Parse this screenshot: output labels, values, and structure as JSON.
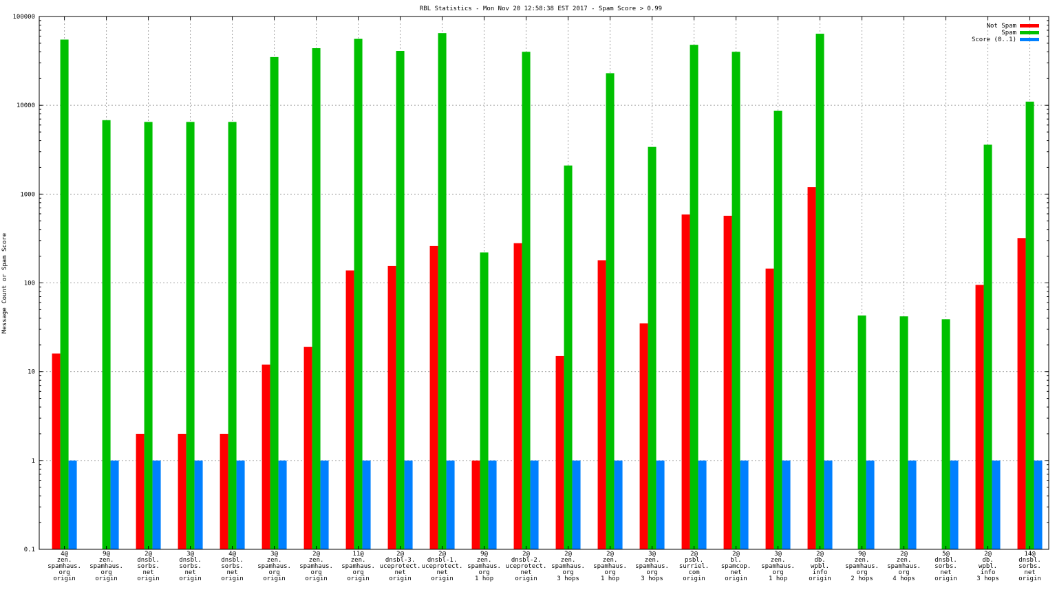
{
  "chart_data": {
    "type": "bar",
    "title": "RBL Statistics - Mon Nov 20 12:58:38 EST 2017 - Spam Score > 0.99",
    "xlabel": "",
    "ylabel": "Message Count or Spam Score",
    "yscale": "log",
    "ylim": [
      0.1,
      100000
    ],
    "yticks": [
      0.1,
      1,
      10,
      100,
      1000,
      10000,
      100000
    ],
    "ytick_labels": [
      "0.1",
      "1",
      "10",
      "100",
      "1000",
      "10000",
      "100000"
    ],
    "grid": true,
    "legend_position": "top-right",
    "categories": [
      [
        "4@",
        "zen.",
        "spamhaus.",
        "org",
        "origin"
      ],
      [
        "9@",
        "zen.",
        "spamhaus.",
        "org",
        "origin"
      ],
      [
        "2@",
        "dnsbl.",
        "sorbs.",
        "net",
        "origin"
      ],
      [
        "3@",
        "dnsbl.",
        "sorbs.",
        "net",
        "origin"
      ],
      [
        "4@",
        "dnsbl.",
        "sorbs.",
        "net",
        "origin"
      ],
      [
        "3@",
        "zen.",
        "spamhaus.",
        "org",
        "origin"
      ],
      [
        "2@",
        "zen.",
        "spamhaus.",
        "org",
        "origin"
      ],
      [
        "11@",
        "zen.",
        "spamhaus.",
        "org",
        "origin"
      ],
      [
        "2@",
        "dnsbl-3.",
        "uceprotect.",
        "net",
        "origin"
      ],
      [
        "2@",
        "dnsbl-1.",
        "uceprotect.",
        "net",
        "origin"
      ],
      [
        "9@",
        "zen.",
        "spamhaus.",
        "org",
        "1 hop"
      ],
      [
        "2@",
        "dnsbl-2.",
        "uceprotect.",
        "net",
        "origin"
      ],
      [
        "2@",
        "zen.",
        "spamhaus.",
        "org",
        "3 hops"
      ],
      [
        "2@",
        "zen.",
        "spamhaus.",
        "org",
        "1 hop"
      ],
      [
        "3@",
        "zen.",
        "spamhaus.",
        "org",
        "3 hops"
      ],
      [
        "2@",
        "psbl.",
        "surriel.",
        "com",
        "origin"
      ],
      [
        "2@",
        "bl.",
        "spamcop.",
        "net",
        "origin"
      ],
      [
        "3@",
        "zen.",
        "spamhaus.",
        "org",
        "1 hop"
      ],
      [
        "2@",
        "db.",
        "wpbl.",
        "info",
        "origin"
      ],
      [
        "9@",
        "zen.",
        "spamhaus.",
        "org",
        "2 hops"
      ],
      [
        "2@",
        "zen.",
        "spamhaus.",
        "org",
        "4 hops"
      ],
      [
        "5@",
        "dnsbl.",
        "sorbs.",
        "net",
        "origin"
      ],
      [
        "2@",
        "db.",
        "wpbl.",
        "info",
        "3 hops"
      ],
      [
        "14@",
        "dnsbl.",
        "sorbs.",
        "net",
        "origin"
      ]
    ],
    "series": [
      {
        "name": "Not Spam",
        "color": "#ff0000",
        "values": [
          16,
          null,
          2,
          2,
          2,
          12,
          19,
          138,
          155,
          260,
          1,
          280,
          15,
          180,
          35,
          590,
          570,
          145,
          1200,
          null,
          null,
          null,
          95,
          320
        ]
      },
      {
        "name": "Spam",
        "color": "#00c000",
        "values": [
          55000,
          6800,
          6500,
          6500,
          6500,
          35000,
          44000,
          56000,
          41000,
          65000,
          220,
          40000,
          2100,
          23000,
          3400,
          48000,
          40000,
          8700,
          64000,
          43,
          42,
          39,
          3600,
          11000
        ]
      },
      {
        "name": "Score (0..1)",
        "color": "#0080ff",
        "values": [
          1,
          1,
          1,
          1,
          1,
          1,
          1,
          1,
          1,
          1,
          1,
          1,
          1,
          1,
          1,
          1,
          1,
          1,
          1,
          1,
          1,
          1,
          1,
          1
        ]
      }
    ]
  }
}
